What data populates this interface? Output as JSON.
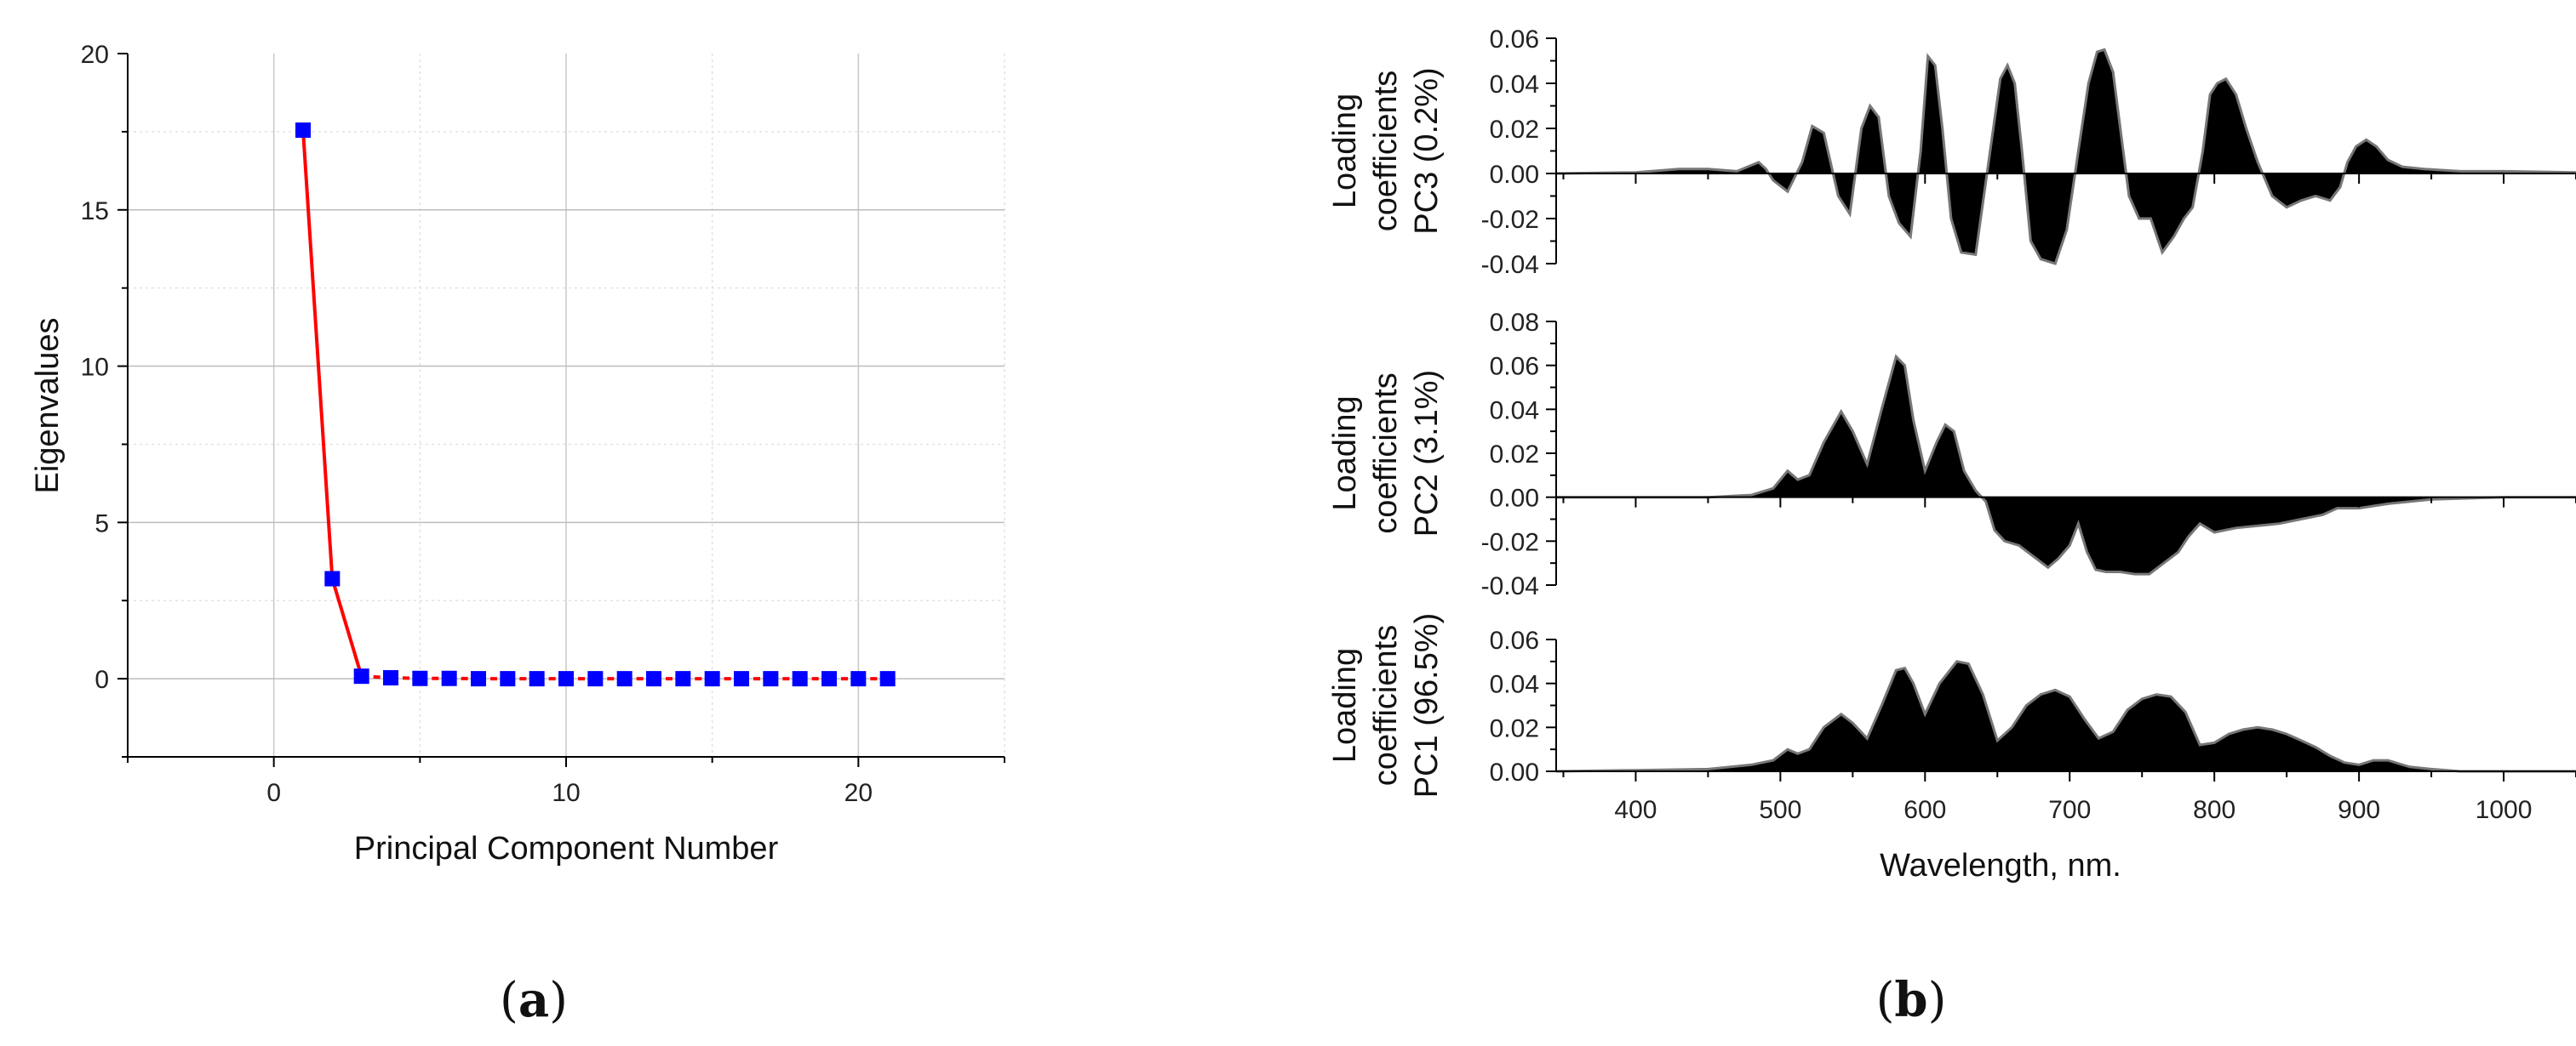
{
  "panel_labels": {
    "a": "a",
    "b": "b"
  },
  "chart_data": [
    {
      "type": "line",
      "xlabel": "Principal Component Number",
      "ylabel": "Eigenvalues",
      "xlim": [
        -5,
        25
      ],
      "ylim": [
        -2.5,
        20
      ],
      "xticks": [
        0,
        10,
        20
      ],
      "yticks": [
        0,
        5,
        10,
        15,
        20
      ],
      "grid": true,
      "line_color": "#ff0000",
      "marker_color": "#0000ff",
      "x": [
        1,
        2,
        3,
        4,
        5,
        6,
        7,
        8,
        9,
        10,
        11,
        12,
        13,
        14,
        15,
        16,
        17,
        18,
        19,
        20,
        21
      ],
      "y": [
        17.55,
        3.2,
        0.08,
        0.03,
        0.01,
        0.01,
        0,
        0,
        0,
        0,
        0,
        0,
        0,
        0,
        0,
        0,
        0,
        0,
        0,
        0,
        0
      ]
    },
    {
      "type": "area",
      "xlabel": "Wavelength, nm.",
      "xlim": [
        345,
        1050
      ],
      "xticks": [
        400,
        500,
        600,
        700,
        800,
        900,
        1000
      ],
      "fill_color": "#000000",
      "outline_color": "#777777",
      "panels": [
        {
          "ylabel": [
            "Loading",
            "coefficients",
            "PC3 (0.2%)"
          ],
          "ylim": [
            -0.04,
            0.06
          ],
          "yticks": [
            "-0.04",
            "-0.02",
            "0.00",
            "0.02",
            "0.04",
            "0.06"
          ],
          "x": [
            345,
            400,
            430,
            450,
            470,
            485,
            490,
            495,
            505,
            515,
            522,
            530,
            540,
            548,
            556,
            562,
            568,
            575,
            582,
            590,
            597,
            602,
            607,
            612,
            618,
            625,
            635,
            645,
            652,
            657,
            662,
            667,
            673,
            680,
            690,
            698,
            706,
            713,
            719,
            724,
            730,
            735,
            741,
            748,
            756,
            764,
            772,
            779,
            785,
            792,
            797,
            802,
            808,
            815,
            822,
            830,
            840,
            850,
            860,
            870,
            880,
            887,
            892,
            898,
            905,
            912,
            920,
            930,
            945,
            970,
            1000,
            1050
          ],
          "y": [
            0,
            0.0005,
            0.002,
            0.002,
            0.001,
            0.005,
            0.002,
            -0.003,
            -0.008,
            0.005,
            0.021,
            0.018,
            -0.01,
            -0.018,
            0.02,
            0.03,
            0.025,
            -0.01,
            -0.022,
            -0.028,
            0.01,
            0.052,
            0.048,
            0.02,
            -0.02,
            -0.035,
            -0.036,
            0.01,
            0.042,
            0.048,
            0.04,
            0.01,
            -0.03,
            -0.038,
            -0.04,
            -0.025,
            0.01,
            0.04,
            0.054,
            0.055,
            0.045,
            0.02,
            -0.01,
            -0.02,
            -0.02,
            -0.035,
            -0.028,
            -0.02,
            -0.015,
            0.01,
            0.035,
            0.04,
            0.042,
            0.035,
            0.02,
            0.005,
            -0.01,
            -0.015,
            -0.012,
            -0.01,
            -0.012,
            -0.006,
            0.005,
            0.012,
            0.015,
            0.012,
            0.006,
            0.003,
            0.002,
            0.001,
            0.001,
            0.0005
          ]
        },
        {
          "ylabel": [
            "Loading",
            "coefficients",
            "PC2 (3.1%)"
          ],
          "ylim": [
            -0.04,
            0.08
          ],
          "yticks": [
            "-0.04",
            "-0.02",
            "0.00",
            "0.02",
            "0.04",
            "0.06",
            "0.08"
          ],
          "x": [
            345,
            400,
            450,
            480,
            495,
            505,
            512,
            520,
            530,
            542,
            550,
            560,
            570,
            580,
            586,
            592,
            600,
            608,
            614,
            620,
            627,
            635,
            642,
            648,
            655,
            665,
            675,
            685,
            692,
            700,
            706,
            712,
            718,
            725,
            735,
            745,
            755,
            765,
            775,
            782,
            790,
            800,
            815,
            830,
            845,
            860,
            875,
            885,
            900,
            920,
            950,
            1000,
            1050
          ],
          "y": [
            0,
            0,
            0,
            0.001,
            0.004,
            0.012,
            0.008,
            0.01,
            0.025,
            0.039,
            0.03,
            0.015,
            0.04,
            0.064,
            0.06,
            0.035,
            0.012,
            0.025,
            0.033,
            0.03,
            0.012,
            0.003,
            -0.002,
            -0.015,
            -0.02,
            -0.022,
            -0.027,
            -0.032,
            -0.028,
            -0.022,
            -0.012,
            -0.025,
            -0.033,
            -0.034,
            -0.034,
            -0.035,
            -0.035,
            -0.03,
            -0.025,
            -0.018,
            -0.012,
            -0.016,
            -0.014,
            -0.013,
            -0.012,
            -0.01,
            -0.008,
            -0.005,
            -0.005,
            -0.003,
            -0.001,
            0,
            0
          ]
        },
        {
          "ylabel": [
            "Loading",
            "coefficients",
            "PC1 (96.5%)"
          ],
          "ylim": [
            0,
            0.06
          ],
          "yticks": [
            "0.00",
            "0.02",
            "0.04",
            "0.06"
          ],
          "x": [
            345,
            400,
            450,
            480,
            495,
            505,
            512,
            520,
            530,
            542,
            550,
            560,
            570,
            580,
            586,
            592,
            600,
            610,
            622,
            630,
            640,
            650,
            660,
            670,
            680,
            690,
            700,
            710,
            720,
            730,
            740,
            750,
            760,
            770,
            780,
            790,
            800,
            810,
            820,
            830,
            840,
            850,
            860,
            870,
            880,
            890,
            900,
            910,
            920,
            935,
            950,
            970,
            1000,
            1050
          ],
          "y": [
            0,
            0.0005,
            0.001,
            0.003,
            0.005,
            0.01,
            0.008,
            0.01,
            0.02,
            0.026,
            0.022,
            0.015,
            0.03,
            0.046,
            0.047,
            0.04,
            0.026,
            0.04,
            0.05,
            0.049,
            0.035,
            0.014,
            0.02,
            0.03,
            0.035,
            0.037,
            0.034,
            0.024,
            0.015,
            0.018,
            0.028,
            0.033,
            0.035,
            0.034,
            0.027,
            0.012,
            0.013,
            0.017,
            0.019,
            0.02,
            0.019,
            0.017,
            0.014,
            0.011,
            0.007,
            0.004,
            0.003,
            0.005,
            0.005,
            0.002,
            0.001,
            0,
            0,
            0
          ]
        }
      ]
    }
  ]
}
